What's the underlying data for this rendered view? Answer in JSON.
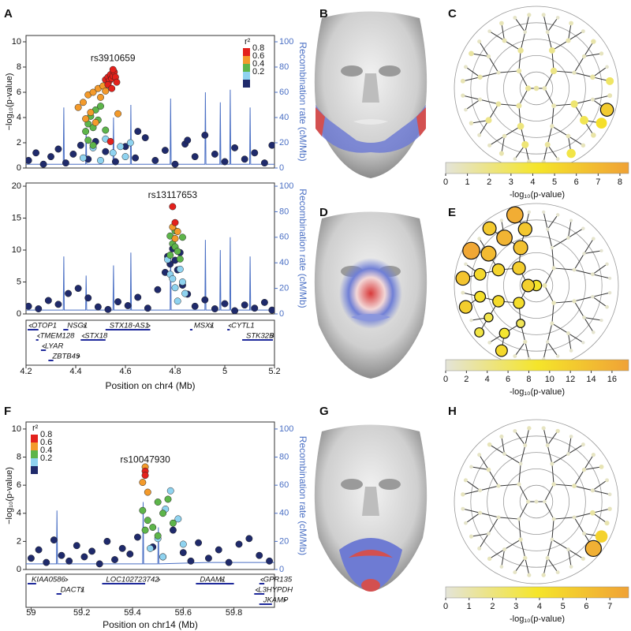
{
  "face_panels": [
    "B",
    "D",
    "G"
  ],
  "chart_data": [
    {
      "type": "locus",
      "panel": "A",
      "xlim": [
        4.2,
        5.2
      ],
      "ylim": [
        0,
        10.5
      ],
      "yticks": [
        0,
        2,
        4,
        6,
        8,
        10
      ],
      "y2lim": [
        0,
        105
      ],
      "y2ticks": [
        0,
        20,
        40,
        60,
        80,
        100
      ],
      "ylabel": "−log₁₀(p-value)",
      "y2label": "Recombination rate (cM/Mb)",
      "annotation": "rs3910659",
      "legend_title": "r²",
      "legend": "top-right",
      "series": [
        {
          "name": "0.8",
          "color": "#e3211c",
          "x": [
            4.52,
            4.53,
            4.535,
            4.54,
            4.545,
            4.55,
            4.555,
            4.56,
            4.53,
            4.545,
            4.55,
            4.565,
            4.54
          ],
          "values": [
            7.0,
            7.2,
            6.9,
            7.4,
            7.1,
            7.3,
            7.6,
            7.2,
            6.6,
            6.3,
            7.8,
            6.8,
            2.1
          ]
        },
        {
          "name": "0.6",
          "color": "#f39a2b",
          "x": [
            4.41,
            4.43,
            4.45,
            4.47,
            4.49,
            4.5,
            4.51,
            4.52,
            4.46,
            4.57,
            4.44,
            4.48
          ],
          "values": [
            4.8,
            5.2,
            5.8,
            6.0,
            6.3,
            5.6,
            6.5,
            6.1,
            4.4,
            4.3,
            3.9,
            3.6
          ]
        },
        {
          "name": "0.4",
          "color": "#5db54a",
          "x": [
            4.44,
            4.45,
            4.46,
            4.47,
            4.48,
            4.49,
            4.5,
            4.52,
            4.45,
            4.47
          ],
          "values": [
            2.9,
            3.5,
            4.1,
            3.2,
            4.6,
            3.8,
            4.9,
            3.0,
            2.2,
            1.8
          ]
        },
        {
          "name": "0.2",
          "color": "#8fd3f0",
          "x": [
            4.43,
            4.47,
            4.52,
            4.55,
            4.58,
            4.6,
            4.62,
            4.5
          ],
          "values": [
            0.8,
            1.6,
            2.3,
            1.2,
            1.7,
            0.9,
            2.0,
            0.6
          ]
        },
        {
          "color": "#1f2a6b",
          "x": [
            4.21,
            4.24,
            4.27,
            4.3,
            4.33,
            4.36,
            4.39,
            4.42,
            4.45,
            4.48,
            4.52,
            4.56,
            4.6,
            4.64,
            4.68,
            4.72,
            4.76,
            4.8,
            4.84,
            4.88,
            4.92,
            4.96,
            5.0,
            5.04,
            5.08,
            5.12,
            5.16,
            5.19,
            4.65,
            4.85
          ],
          "values": [
            0.6,
            1.2,
            0.3,
            0.9,
            1.5,
            0.4,
            1.1,
            1.8,
            0.7,
            2.1,
            1.3,
            0.5,
            1.7,
            0.8,
            2.4,
            0.6,
            1.4,
            0.3,
            1.9,
            0.9,
            2.6,
            1.1,
            0.5,
            1.6,
            0.7,
            1.2,
            0.4,
            1.8,
            2.9,
            2.2
          ]
        },
        {
          "axis": "y2",
          "color": "#4a6fc4",
          "x": [
            4.2,
            4.3,
            4.35,
            4.352,
            4.354,
            4.44,
            4.442,
            4.444,
            4.55,
            4.552,
            4.554,
            4.62,
            4.622,
            4.624,
            4.78,
            4.782,
            4.784,
            4.92,
            4.922,
            4.924,
            4.98,
            4.982,
            4.984,
            5.02,
            5.022,
            5.024,
            5.1,
            5.102,
            5.104,
            5.2
          ],
          "values": [
            3,
            3,
            3,
            48,
            3,
            3,
            32,
            3,
            3,
            40,
            3,
            3,
            50,
            3,
            3,
            55,
            3,
            3,
            60,
            3,
            3,
            52,
            3,
            3,
            62,
            3,
            3,
            48,
            3,
            3
          ]
        }
      ]
    },
    {
      "type": "locus",
      "xlim": [
        4.2,
        5.2
      ],
      "xticks": [
        4.2,
        4.4,
        4.6,
        4.8,
        5,
        5.2
      ],
      "xlabel": "Position on chr4 (Mb)",
      "ylim": [
        0,
        20.5
      ],
      "yticks": [
        0,
        5,
        10,
        15,
        20
      ],
      "y2lim": [
        0,
        102.5
      ],
      "y2ticks": [
        0,
        20,
        40,
        60,
        80,
        100
      ],
      "y2label": "Recombination rate (cM/Mb)",
      "annotation": "rs13117653",
      "series": [
        {
          "color": "#e3211c",
          "x": [
            4.79,
            4.8
          ],
          "values": [
            16.8,
            14.3
          ]
        },
        {
          "color": "#f39a2b",
          "x": [
            4.79,
            4.81,
            4.8
          ],
          "values": [
            13.6,
            12.9,
            11.8
          ]
        },
        {
          "color": "#5db54a",
          "x": [
            4.78,
            4.79,
            4.8,
            4.81,
            4.82,
            4.83,
            4.78,
            4.8
          ],
          "values": [
            12.2,
            11.0,
            10.5,
            9.8,
            8.6,
            12.0,
            9.2,
            13.0
          ]
        },
        {
          "color": "#8fd3f0",
          "x": [
            4.77,
            4.78,
            4.8,
            4.82,
            4.84,
            4.81,
            4.79,
            4.83
          ],
          "values": [
            8.5,
            6.2,
            4.1,
            7.0,
            3.2,
            2.0,
            5.5,
            5.0
          ]
        },
        {
          "color": "#1f2a6b",
          "x": [
            4.21,
            4.25,
            4.29,
            4.33,
            4.37,
            4.41,
            4.45,
            4.49,
            4.53,
            4.57,
            4.61,
            4.65,
            4.69,
            4.73,
            4.76,
            4.77,
            4.78,
            4.79,
            4.8,
            4.81,
            4.82,
            4.83,
            4.85,
            4.88,
            4.92,
            4.96,
            5.0,
            5.04,
            5.08,
            5.12,
            5.16,
            5.19
          ],
          "values": [
            1.2,
            0.8,
            2.1,
            1.5,
            3.2,
            4.0,
            2.5,
            1.1,
            0.7,
            1.9,
            1.3,
            2.6,
            0.9,
            3.8,
            6.5,
            9.0,
            7.8,
            10.2,
            8.4,
            6.9,
            9.6,
            4.5,
            3.1,
            1.2,
            2.2,
            0.8,
            1.6,
            0.5,
            1.4,
            0.9,
            1.8,
            0.6
          ]
        },
        {
          "axis": "y2",
          "color": "#4a6fc4",
          "x": [
            4.2,
            4.3,
            4.35,
            4.352,
            4.354,
            4.44,
            4.442,
            4.444,
            4.55,
            4.552,
            4.554,
            4.62,
            4.622,
            4.624,
            4.78,
            4.782,
            4.784,
            4.92,
            4.922,
            4.924,
            4.98,
            4.982,
            4.984,
            5.02,
            5.022,
            5.024,
            5.1,
            5.102,
            5.104,
            5.2
          ],
          "values": [
            3,
            3,
            3,
            45,
            3,
            3,
            30,
            3,
            3,
            38,
            3,
            3,
            48,
            3,
            3,
            52,
            3,
            3,
            58,
            3,
            3,
            50,
            3,
            3,
            60,
            3,
            3,
            45,
            3,
            3
          ]
        }
      ],
      "genes": [
        {
          "name": "OTOP1",
          "start": 4.19,
          "end": 4.25,
          "strand": "-"
        },
        {
          "name": "NSG1",
          "start": 4.35,
          "end": 4.37,
          "strand": "+"
        },
        {
          "name": "STX18-AS1",
          "start": 4.52,
          "end": 4.7,
          "strand": "+"
        },
        {
          "name": "MSX1",
          "start": 4.86,
          "end": 4.87,
          "strand": "+"
        },
        {
          "name": "CYTL1",
          "start": 5.01,
          "end": 5.02,
          "strand": "-"
        },
        {
          "name": "TMEM128",
          "start": 4.24,
          "end": 4.25,
          "strand": "-"
        },
        {
          "name": "STX18",
          "start": 4.42,
          "end": 4.52,
          "strand": "-"
        },
        {
          "name": "STK32B",
          "start": 5.07,
          "end": 5.2,
          "strand": "+"
        },
        {
          "name": "LYAR",
          "start": 4.26,
          "end": 4.28,
          "strand": "-"
        },
        {
          "name": "ZBTB49",
          "start": 4.29,
          "end": 4.31,
          "strand": "+"
        }
      ]
    },
    {
      "type": "tree",
      "panel": "C",
      "xlim": [
        0,
        8.4
      ],
      "xticks": [
        0,
        1,
        2,
        3,
        4,
        5,
        6,
        7,
        8
      ],
      "xlabel": "-log₁₀(p-value)",
      "threshold": 5.5,
      "values": [
        1.2,
        0.8,
        1.5,
        2.0,
        0.9,
        1.4,
        1.1,
        1.8,
        0.6,
        2.5,
        0.7,
        2.2,
        1.3,
        0.5,
        1.6,
        0.4,
        1.0,
        0.6,
        1.2,
        0.5,
        3.2,
        0.8,
        1.4,
        2.4,
        0.7,
        1.9,
        0.5,
        1.1,
        0.6,
        0.9,
        0.3,
        0.5,
        0.3,
        0.8,
        0.4,
        1.1,
        0.6,
        0.3,
        2.8,
        0.9,
        5.8,
        4.6,
        1.2,
        0.7,
        3.5,
        0.4,
        0.6,
        0.8,
        0.3,
        1.0,
        0.5,
        0.4,
        0.7,
        0.3,
        0.6,
        0.9,
        0.4,
        1.3,
        0.5,
        0.3,
        0.8,
        0.4,
        0.6
      ]
    },
    {
      "type": "tree",
      "panel": "E",
      "xlim": [
        0,
        17.6
      ],
      "xticks": [
        0,
        2,
        4,
        6,
        8,
        10,
        12,
        14,
        16
      ],
      "xlabel": "-log₁₀(p-value)",
      "threshold": 6,
      "values": [
        9.0,
        2.0,
        11.5,
        1.0,
        1.5,
        9.8,
        12.0,
        0.5,
        0.8,
        1.2,
        1.0,
        6.5,
        10.2,
        11.0,
        13.5,
        0.3,
        0.6,
        0.4,
        0.8,
        0.5,
        0.7,
        0.9,
        0.4,
        1.2,
        8.5,
        7.0,
        9.5,
        10.5,
        14.5,
        15.2,
        12.8,
        0.3,
        0.5,
        0.2,
        0.4,
        0.6,
        0.3,
        0.5,
        0.2,
        0.4,
        0.7,
        0.3,
        0.5,
        0.2,
        0.6,
        0.4,
        0.3,
        0.5,
        0.8,
        10.5,
        0.6,
        7.5,
        0.4,
        11.8,
        0.9,
        13.2,
        0.5,
        17.0,
        0.7,
        12.5,
        0.3,
        16.2,
        0.4
      ]
    },
    {
      "type": "locus",
      "panel": "F",
      "xlim": [
        58.98,
        59.96
      ],
      "xticks": [
        59,
        59.2,
        59.4,
        59.6,
        59.8
      ],
      "xlabel": "Position on chr14 (Mb)",
      "ylim": [
        0,
        10.5
      ],
      "yticks": [
        0,
        2,
        4,
        6,
        8,
        10
      ],
      "y2lim": [
        0,
        105
      ],
      "y2ticks": [
        0,
        20,
        40,
        60,
        80,
        100
      ],
      "ylabel": "−log₁₀(p-value)",
      "y2label": "Recombination rate (cM/Mb)",
      "annotation": "rs10047930",
      "legend_title": "r²",
      "legend": "top-left",
      "series": [
        {
          "name": "0.8",
          "color": "#e3211c",
          "x": [
            59.45,
            59.45
          ],
          "values": [
            7.0,
            6.7
          ]
        },
        {
          "name": "0.6",
          "color": "#f39a2b",
          "x": [
            59.45,
            59.44,
            59.46
          ],
          "values": [
            7.3,
            6.2,
            5.5
          ]
        },
        {
          "name": "0.4",
          "color": "#5db54a",
          "x": [
            59.44,
            59.46,
            59.48,
            59.5,
            59.52,
            59.54,
            59.56,
            59.45,
            59.5
          ],
          "values": [
            4.2,
            3.5,
            3.0,
            4.8,
            4.0,
            5.0,
            3.3,
            2.8,
            2.4
          ]
        },
        {
          "name": "0.2",
          "color": "#8fd3f0",
          "x": [
            59.47,
            59.5,
            59.53,
            59.55,
            59.58,
            59.6,
            59.52
          ],
          "values": [
            1.5,
            2.2,
            4.3,
            5.6,
            3.6,
            1.8,
            0.9
          ]
        },
        {
          "color": "#1f2a6b",
          "x": [
            59.0,
            59.03,
            59.06,
            59.09,
            59.12,
            59.15,
            59.18,
            59.21,
            59.24,
            59.27,
            59.3,
            59.33,
            59.36,
            59.39,
            59.42,
            59.48,
            59.52,
            59.56,
            59.6,
            59.63,
            59.66,
            59.7,
            59.74,
            59.78,
            59.82,
            59.86,
            59.9,
            59.94
          ],
          "values": [
            0.8,
            1.4,
            0.5,
            2.1,
            1.0,
            0.6,
            1.7,
            0.9,
            1.3,
            0.4,
            2.0,
            0.7,
            1.5,
            1.1,
            2.3,
            1.6,
            0.9,
            2.8,
            1.2,
            0.6,
            1.9,
            0.8,
            1.4,
            0.5,
            1.8,
            2.2,
            1.0,
            0.6
          ]
        },
        {
          "axis": "y2",
          "color": "#4a6fc4",
          "x": [
            58.98,
            59.1,
            59.102,
            59.104,
            59.3,
            59.44,
            59.442,
            59.444,
            59.5,
            59.502,
            59.504,
            59.7,
            59.96
          ],
          "values": [
            4,
            4,
            42,
            4,
            4,
            4,
            48,
            4,
            4,
            30,
            4,
            5,
            5
          ]
        }
      ],
      "genes": [
        {
          "name": "KIAA0586",
          "start": 58.98,
          "end": 59.02,
          "strand": "+"
        },
        {
          "name": "LOC102723742",
          "start": 59.28,
          "end": 59.45,
          "strand": "+"
        },
        {
          "name": "DAAM1",
          "start": 59.65,
          "end": 59.8,
          "strand": "+"
        },
        {
          "name": "GPR135",
          "start": 59.9,
          "end": 59.92,
          "strand": "-"
        },
        {
          "name": "DACT1",
          "start": 59.1,
          "end": 59.12,
          "strand": "+"
        },
        {
          "name": "L3HYPDH",
          "start": 59.88,
          "end": 59.92,
          "strand": "-"
        },
        {
          "name": "JKAMP",
          "start": 59.9,
          "end": 59.95,
          "strand": "+"
        }
      ]
    },
    {
      "type": "tree",
      "panel": "H",
      "xlim": [
        0,
        7.8
      ],
      "xticks": [
        0,
        1,
        2,
        3,
        4,
        5,
        6,
        7
      ],
      "xlabel": "-log₁₀(p-value)",
      "threshold": 6,
      "values": [
        0.4,
        0.3,
        0.5,
        0.6,
        0.4,
        0.3,
        0.5,
        0.5,
        0.8,
        0.4,
        0.3,
        0.6,
        0.4,
        0.5,
        0.3,
        0.4,
        0.3,
        0.6,
        0.5,
        1.2,
        0.4,
        0.3,
        0.5,
        0.6,
        0.4,
        0.3,
        0.5,
        0.4,
        0.7,
        0.3,
        0.4,
        0.5,
        0.6,
        0.3,
        0.4,
        0.5,
        0.8,
        0.4,
        0.3,
        0.6,
        0.9,
        5.0,
        7.0,
        0.5,
        0.3,
        0.4,
        0.6,
        0.5,
        0.4,
        0.3,
        0.6,
        0.4,
        0.5,
        0.3,
        0.4,
        0.6,
        0.5,
        0.3,
        0.4,
        0.7,
        0.5,
        0.4,
        0.6
      ]
    }
  ]
}
